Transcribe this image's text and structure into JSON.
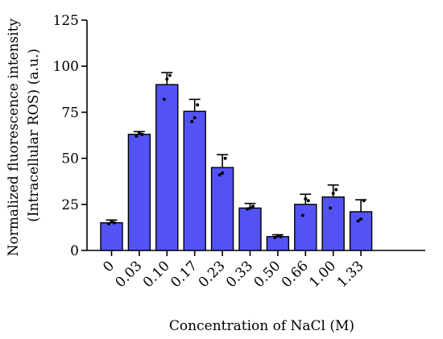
{
  "chart_data": {
    "type": "bar",
    "xlabel": "Concentration of NaCl (M)",
    "ylabel_lines": [
      "Normalized fluorescence intensity",
      "(Intracellular ROS) (a.u.)"
    ],
    "categories": [
      "0",
      "0.03",
      "0.10",
      "0.17",
      "0.23",
      "0.33",
      "0.50",
      "0.66",
      "1.00",
      "1.33"
    ],
    "values": [
      15,
      63,
      90,
      75.5,
      45,
      23,
      7.5,
      25,
      29,
      21
    ],
    "error_upper": [
      16.5,
      64.5,
      96.5,
      82,
      52,
      25.5,
      8.5,
      30.5,
      35.5,
      27.5
    ],
    "replicate_points": [
      [
        14.5,
        16,
        15
      ],
      [
        62,
        64,
        63
      ],
      [
        82,
        93,
        95
      ],
      [
        70,
        72,
        79
      ],
      [
        41,
        42,
        50
      ],
      [
        22.5,
        23,
        24
      ],
      [
        7,
        8,
        7.5
      ],
      [
        19,
        28,
        27
      ],
      [
        23,
        31,
        33
      ],
      [
        16,
        17,
        27
      ]
    ],
    "yticks": [
      0,
      25,
      50,
      75,
      100,
      125
    ],
    "ylim": [
      0,
      125
    ],
    "bar_color": "#5353f5",
    "grid": false,
    "legend": "none"
  }
}
